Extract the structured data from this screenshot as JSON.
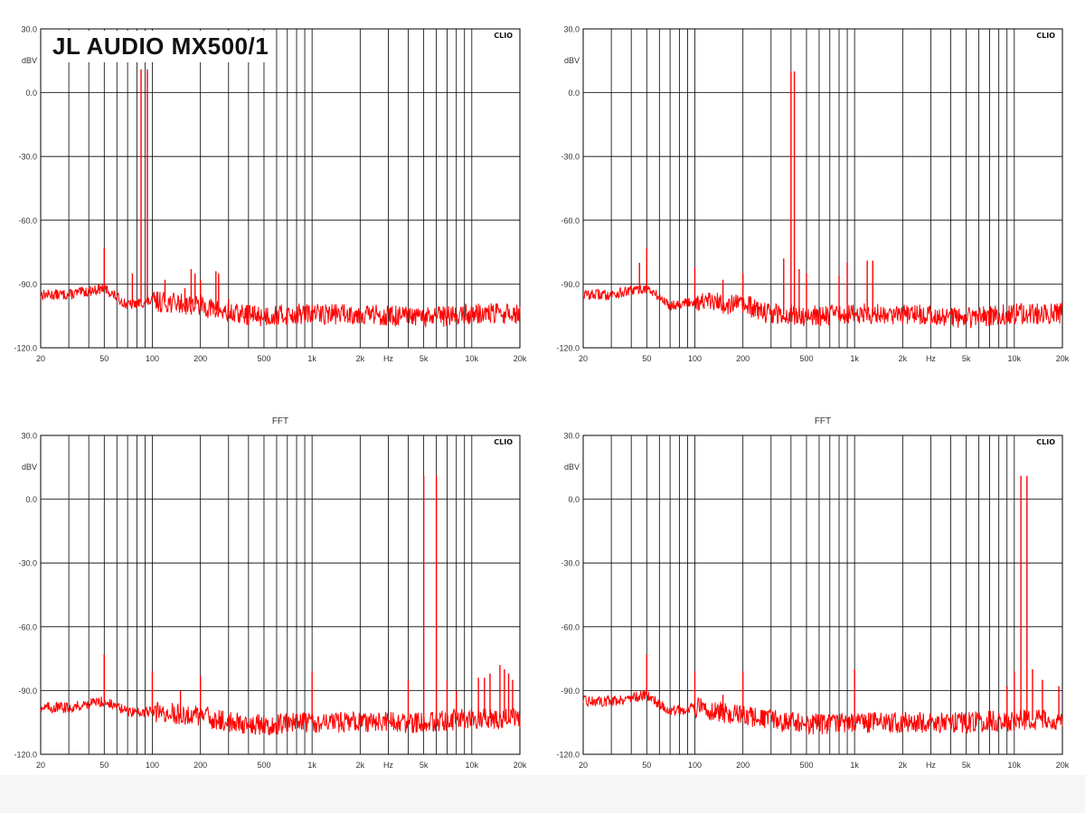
{
  "page": {
    "title_label": "JL AUDIO MX500/1",
    "background": "#ffffff",
    "footer_color": "#f6f6f6"
  },
  "style": {
    "trace_color": "#ff0000",
    "grid_color": "#000000"
  },
  "chart_data": [
    {
      "id": "panel-1",
      "type": "line",
      "title": "",
      "watermark": "CLIO",
      "xscale": "log",
      "xlim": [
        20,
        20000
      ],
      "xticks": [
        "20",
        "50",
        "100",
        "200",
        "500",
        "1k",
        "2k",
        "Hz",
        "5k",
        "10k",
        "20k"
      ],
      "ylim": [
        -120,
        30
      ],
      "yticks": [
        "30.0",
        "0.0",
        "-30.0",
        "-60.0",
        "-90.0",
        "-120.0"
      ],
      "yunit": "dBV",
      "grid": true,
      "series": [
        {
          "floor": [
            [
              20,
              -95
            ],
            [
              30,
              -95
            ],
            [
              50,
              -92
            ],
            [
              70,
              -100
            ],
            [
              100,
              -98
            ],
            [
              200,
              -100
            ],
            [
              300,
              -104
            ],
            [
              500,
              -105
            ],
            [
              1000,
              -104
            ],
            [
              2000,
              -104
            ],
            [
              5000,
              -106
            ],
            [
              10000,
              -104
            ],
            [
              20000,
              -104
            ]
          ],
          "peaks": [
            [
              50,
              -73
            ],
            [
              75,
              -85
            ],
            [
              85,
              11
            ],
            [
              93,
              11
            ],
            [
              120,
              -88
            ],
            [
              160,
              -92
            ],
            [
              175,
              -83
            ],
            [
              185,
              -85
            ],
            [
              200,
              -88
            ],
            [
              250,
              -84
            ],
            [
              260,
              -85
            ],
            [
              300,
              -97
            ],
            [
              400,
              -100
            ]
          ]
        }
      ]
    },
    {
      "id": "panel-2",
      "type": "line",
      "title": "",
      "watermark": "CLIO",
      "xscale": "log",
      "xlim": [
        20,
        20000
      ],
      "xticks": [
        "20",
        "50",
        "100",
        "200",
        "500",
        "1k",
        "2k",
        "Hz",
        "5k",
        "10k",
        "20k"
      ],
      "ylim": [
        -120,
        30
      ],
      "yticks": [
        "30.0",
        "0.0",
        "-30.0",
        "-60.0",
        "-90.0",
        "-120.0"
      ],
      "yunit": "dBV",
      "grid": true,
      "series": [
        {
          "floor": [
            [
              20,
              -95
            ],
            [
              30,
              -95
            ],
            [
              50,
              -92
            ],
            [
              70,
              -100
            ],
            [
              100,
              -98
            ],
            [
              200,
              -100
            ],
            [
              300,
              -104
            ],
            [
              500,
              -105
            ],
            [
              1000,
              -104
            ],
            [
              2000,
              -104
            ],
            [
              5000,
              -106
            ],
            [
              10000,
              -104
            ],
            [
              20000,
              -104
            ]
          ],
          "peaks": [
            [
              45,
              -80
            ],
            [
              50,
              -73
            ],
            [
              100,
              -82
            ],
            [
              150,
              -88
            ],
            [
              200,
              -85
            ],
            [
              360,
              -78
            ],
            [
              400,
              10
            ],
            [
              420,
              10
            ],
            [
              450,
              -83
            ],
            [
              500,
              -85
            ],
            [
              800,
              -86
            ],
            [
              900,
              -80
            ],
            [
              1200,
              -79
            ],
            [
              1300,
              -79
            ]
          ]
        }
      ]
    },
    {
      "id": "panel-3",
      "type": "line",
      "title": "FFT",
      "watermark": "CLIO",
      "xscale": "log",
      "xlim": [
        20,
        20000
      ],
      "xticks": [
        "20",
        "50",
        "100",
        "200",
        "500",
        "1k",
        "2k",
        "Hz",
        "5k",
        "10k",
        "20k"
      ],
      "ylim": [
        -120,
        30
      ],
      "yticks": [
        "30.0",
        "0.0",
        "-30.0",
        "-60.0",
        "-90.0",
        "-120.0"
      ],
      "yunit": "dBV",
      "grid": true,
      "series": [
        {
          "floor": [
            [
              20,
              -98
            ],
            [
              30,
              -98
            ],
            [
              50,
              -95
            ],
            [
              70,
              -100
            ],
            [
              100,
              -100
            ],
            [
              200,
              -102
            ],
            [
              300,
              -105
            ],
            [
              500,
              -106
            ],
            [
              1000,
              -105
            ],
            [
              2000,
              -105
            ],
            [
              5000,
              -105
            ],
            [
              10000,
              -103
            ],
            [
              20000,
              -103
            ]
          ],
          "peaks": [
            [
              50,
              -73
            ],
            [
              100,
              -81
            ],
            [
              150,
              -90
            ],
            [
              200,
              -83
            ],
            [
              1000,
              -81
            ],
            [
              4000,
              -85
            ],
            [
              5000,
              11
            ],
            [
              6000,
              11
            ],
            [
              7000,
              -85
            ],
            [
              8000,
              -90
            ],
            [
              11000,
              -84
            ],
            [
              12000,
              -84
            ],
            [
              13000,
              -82
            ],
            [
              15000,
              -78
            ],
            [
              16000,
              -80
            ],
            [
              17000,
              -82
            ],
            [
              18000,
              -85
            ]
          ]
        }
      ]
    },
    {
      "id": "panel-4",
      "type": "line",
      "title": "FFT",
      "watermark": "CLIO",
      "xscale": "log",
      "xlim": [
        20,
        20000
      ],
      "xticks": [
        "20",
        "50",
        "100",
        "200",
        "500",
        "1k",
        "2k",
        "Hz",
        "5k",
        "10k",
        "20k"
      ],
      "ylim": [
        -120,
        30
      ],
      "yticks": [
        "30.0",
        "0.0",
        "-30.0",
        "-60.0",
        "-90.0",
        "-120.0"
      ],
      "yunit": "dBV",
      "grid": true,
      "series": [
        {
          "floor": [
            [
              20,
              -95
            ],
            [
              30,
              -95
            ],
            [
              50,
              -92
            ],
            [
              70,
              -100
            ],
            [
              100,
              -98
            ],
            [
              200,
              -102
            ],
            [
              300,
              -104
            ],
            [
              500,
              -106
            ],
            [
              1000,
              -105
            ],
            [
              2000,
              -105
            ],
            [
              5000,
              -105
            ],
            [
              10000,
              -104
            ],
            [
              20000,
              -104
            ]
          ],
          "peaks": [
            [
              50,
              -73
            ],
            [
              100,
              -81
            ],
            [
              150,
              -92
            ],
            [
              200,
              -81
            ],
            [
              1000,
              -80
            ],
            [
              9000,
              -88
            ],
            [
              10000,
              -81
            ],
            [
              11000,
              11
            ],
            [
              12000,
              11
            ],
            [
              13000,
              -80
            ],
            [
              15000,
              -85
            ],
            [
              19000,
              -88
            ]
          ]
        }
      ]
    }
  ]
}
